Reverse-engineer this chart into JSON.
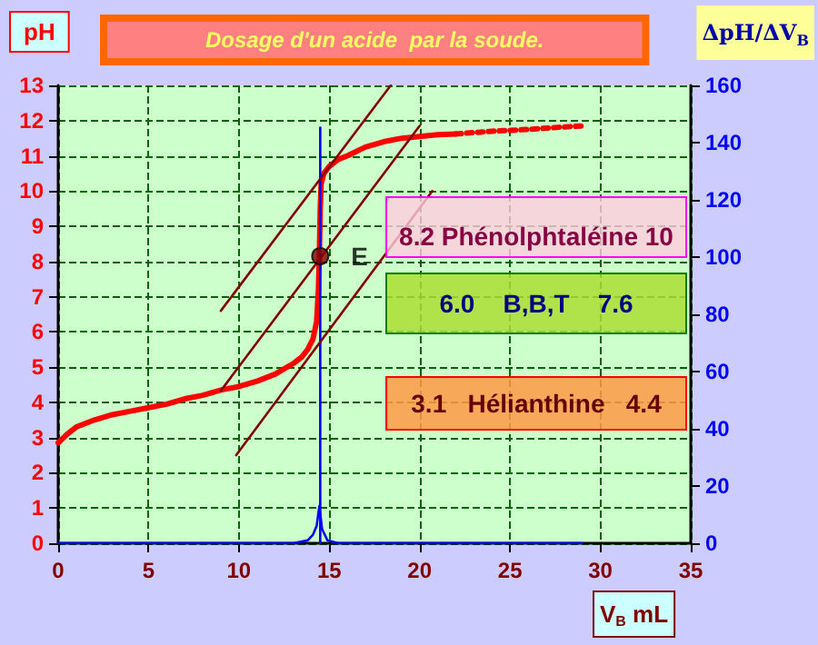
{
  "chart_data": {
    "type": "line",
    "title": "Dosage d'un acide  par la soude.",
    "ylabel": "pH",
    "y2label": "ΔpH/ΔV$_{B}$",
    "xlabel": "V$_{B}$ mL",
    "annotations": [
      "8.2 Phénolphtaléine 10",
      "6.0    B,B,T    7.6",
      "3.1   Hélianthine   4.4"
    ],
    "xlim": [
      0,
      35
    ],
    "xticks": [
      0,
      5,
      10,
      15,
      20,
      25,
      30,
      35
    ],
    "ylim": [
      0,
      13
    ],
    "yticks": [
      0,
      1,
      2,
      3,
      4,
      5,
      6,
      7,
      8,
      9,
      10,
      11,
      12,
      13
    ],
    "y2lim": [
      0,
      160
    ],
    "y2ticks": [
      0,
      20,
      40,
      60,
      80,
      100,
      120,
      140,
      160
    ],
    "grid": true,
    "legend": false,
    "marker": "none",
    "series": [
      {
        "color": "#ff0000",
        "x": [
          0,
          0.5,
          1,
          2,
          3,
          4,
          5,
          6,
          7,
          8,
          9,
          10,
          11,
          12,
          13,
          13.5,
          13.8,
          14.1,
          14.3,
          14.4,
          14.45,
          14.5,
          14.55,
          14.7,
          15,
          15.5,
          16,
          17,
          18,
          19,
          20,
          21,
          22
        ],
        "values": [
          2.85,
          3.1,
          3.3,
          3.5,
          3.65,
          3.75,
          3.85,
          3.95,
          4.1,
          4.2,
          4.35,
          4.45,
          4.6,
          4.8,
          5.1,
          5.3,
          5.5,
          5.8,
          6.3,
          7.2,
          8.2,
          9.5,
          10.2,
          10.5,
          10.7,
          10.9,
          11.0,
          11.25,
          11.4,
          11.5,
          11.55,
          11.6,
          11.62
        ]
      },
      {
        "color": "#ff0000",
        "line_style": "dotted",
        "x": [
          22,
          24,
          26,
          28,
          29
        ],
        "values": [
          11.62,
          11.7,
          11.75,
          11.82,
          11.85
        ]
      },
      {
        "color": "#0000ff",
        "axis": "y2",
        "x": [
          0,
          13,
          13.8,
          14.1,
          14.3,
          14.45,
          14.6,
          14.9,
          15.5,
          29
        ],
        "values": [
          0,
          0,
          1,
          3,
          6,
          13,
          5,
          1,
          0,
          0
        ]
      },
      {
        "color": "#0000ff",
        "x": [
          14.5,
          14.5
        ],
        "values": [
          0,
          11.8
        ]
      },
      {
        "color": "#800000",
        "x": [
          9.0,
          18.4
        ],
        "values": [
          6.6,
          13
        ]
      },
      {
        "color": "#800000",
        "x": [
          9.0,
          20.0
        ],
        "values": [
          4.33,
          11.85
        ]
      },
      {
        "color": "#800000",
        "x": [
          9.85,
          20.7
        ],
        "values": [
          2.5,
          10.0
        ]
      },
      {
        "type": "scatter",
        "name": "E",
        "color": "#800000",
        "marker": "circle",
        "x": [
          14.5
        ],
        "values": [
          8.15
        ]
      }
    ]
  }
}
